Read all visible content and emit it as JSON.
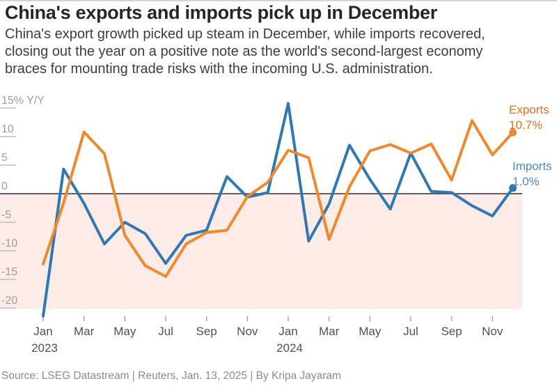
{
  "header": {
    "title": "China's exports and imports pick up in December",
    "subtitle_lines": [
      "China's export growth picked up steam in December, while imports recovered,",
      "closing out the year on a positive note as the world's second-largest economy",
      "braces for mounting trade risks with the incoming U.S. administration."
    ]
  },
  "footer": {
    "source": "Source: LSEG Datastream  |  Reuters, Jan. 13, 2025  |  By Kripa Jayaram"
  },
  "chart_data": {
    "type": "line",
    "title": "China's exports and imports pick up in December",
    "unit": "% Y/Y",
    "x": [
      "Jan 2023",
      "Feb 2023",
      "Mar 2023",
      "Apr 2023",
      "May 2023",
      "Jun 2023",
      "Jul 2023",
      "Aug 2023",
      "Sep 2023",
      "Oct 2023",
      "Nov 2023",
      "Dec 2023",
      "Jan 2024",
      "Feb 2024",
      "Mar 2024",
      "Apr 2024",
      "May 2024",
      "Jun 2024",
      "Jul 2024",
      "Aug 2024",
      "Sep 2024",
      "Oct 2024",
      "Nov 2024",
      "Dec 2024"
    ],
    "series": [
      {
        "name": "Exports",
        "end_label": "Exports",
        "end_value": "10.7%",
        "color": "#F0882E",
        "label_color": "#E0701F",
        "values": [
          -12.3,
          -1.6,
          10.8,
          7.0,
          -7.3,
          -12.6,
          -14.5,
          -8.8,
          -6.8,
          -6.4,
          -0.5,
          2.0,
          7.6,
          6.3,
          -8.0,
          1.2,
          7.5,
          8.6,
          7.1,
          8.7,
          2.4,
          12.8,
          6.8,
          10.7
        ]
      },
      {
        "name": "Imports",
        "end_label": "Imports",
        "end_value": "1.0%",
        "color": "#2F78B4",
        "label_color": "#4C89C4",
        "values": [
          -21.4,
          4.3,
          -1.7,
          -8.8,
          -5.0,
          -7.0,
          -12.2,
          -7.3,
          -6.4,
          3.0,
          -0.6,
          0.2,
          15.8,
          -8.3,
          -1.8,
          8.5,
          2.5,
          -2.7,
          7.1,
          0.4,
          0.2,
          -2.1,
          -3.9,
          1.0
        ]
      }
    ],
    "y_ticks": [
      {
        "value": 15,
        "label": "15% Y/Y"
      },
      {
        "value": 10,
        "label": "10"
      },
      {
        "value": 5,
        "label": "5"
      },
      {
        "value": 0,
        "label": "0"
      },
      {
        "value": -5,
        "label": "-5"
      },
      {
        "value": -10,
        "label": "-10"
      },
      {
        "value": -15,
        "label": "-15"
      },
      {
        "value": -20,
        "label": "-20"
      }
    ],
    "x_ticks": [
      {
        "index": 0,
        "label": "Jan",
        "year": "2023"
      },
      {
        "index": 2,
        "label": "Mar"
      },
      {
        "index": 4,
        "label": "May"
      },
      {
        "index": 6,
        "label": "Jul"
      },
      {
        "index": 8,
        "label": "Sep"
      },
      {
        "index": 10,
        "label": "Nov"
      },
      {
        "index": 12,
        "label": "Jan",
        "year": "2024"
      },
      {
        "index": 14,
        "label": "Mar"
      },
      {
        "index": 16,
        "label": "May"
      },
      {
        "index": 18,
        "label": "Jul"
      },
      {
        "index": 20,
        "label": "Sep"
      },
      {
        "index": 22,
        "label": "Nov"
      }
    ],
    "ylim": [
      -21.5,
      16.5
    ],
    "grid": false,
    "zero_line": true,
    "legend_position": "line-end-labels-right",
    "negative_area_color": "#FCEBE7"
  }
}
